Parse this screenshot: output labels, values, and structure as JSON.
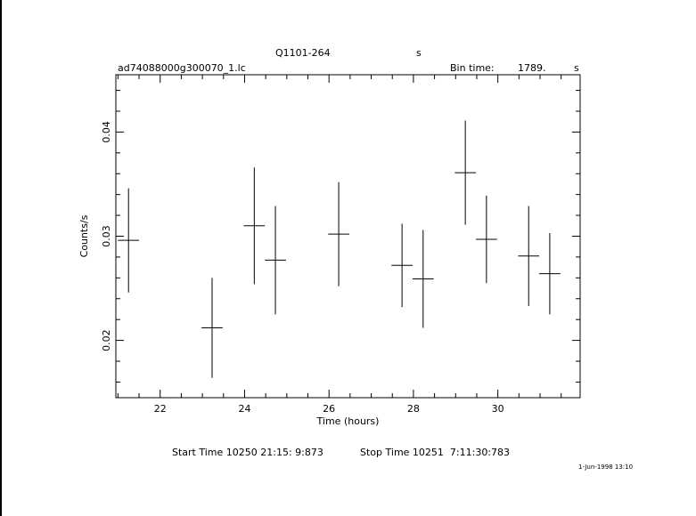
{
  "header": {
    "object": "Q1101-264",
    "object_unit": "s",
    "filename": "ad74088000g300070_1.lc",
    "bin_time_label": "Bin time:",
    "bin_time_value": "1789.",
    "bin_time_unit": "s"
  },
  "footer": {
    "start_time": "Start Time 10250 21:15: 9:873",
    "stop_time": "Stop Time 10251  7:11:30:783",
    "date_stamp": "1-Jun-1998 13:10"
  },
  "chart_data": {
    "type": "scatter",
    "title": "Q1101-264",
    "xlabel": "Time (hours)",
    "ylabel": "Counts/s",
    "xlim": [
      20.95,
      31.95
    ],
    "ylim": [
      0.0145,
      0.0455
    ],
    "x_ticks": [
      22,
      24,
      26,
      28,
      30
    ],
    "y_ticks": [
      0.02,
      0.03,
      0.04
    ],
    "x_tick_labels": [
      "22",
      "24",
      "26",
      "28",
      "30"
    ],
    "y_tick_labels": [
      "0.02",
      "0.03",
      "0.04"
    ],
    "grid": false,
    "series": [
      {
        "points": [
          {
            "x": 21.25,
            "xerr": 0.25,
            "y": 0.0296,
            "yerr": 0.005
          },
          {
            "x": 23.23,
            "xerr": 0.25,
            "y": 0.0212,
            "yerr": 0.0048
          },
          {
            "x": 24.23,
            "xerr": 0.25,
            "y": 0.031,
            "yerr": 0.0056
          },
          {
            "x": 24.73,
            "xerr": 0.25,
            "y": 0.0277,
            "yerr": 0.0052
          },
          {
            "x": 26.23,
            "xerr": 0.25,
            "y": 0.0302,
            "yerr": 0.005
          },
          {
            "x": 27.73,
            "xerr": 0.25,
            "y": 0.0272,
            "yerr": 0.004
          },
          {
            "x": 28.23,
            "xerr": 0.25,
            "y": 0.0259,
            "yerr": 0.0047
          },
          {
            "x": 29.23,
            "xerr": 0.25,
            "y": 0.0361,
            "yerr": 0.005
          },
          {
            "x": 29.73,
            "xerr": 0.25,
            "y": 0.0297,
            "yerr": 0.0042
          },
          {
            "x": 30.73,
            "xerr": 0.25,
            "y": 0.0281,
            "yerr": 0.0048
          },
          {
            "x": 31.23,
            "xerr": 0.25,
            "y": 0.0264,
            "yerr": 0.0039
          }
        ]
      }
    ]
  }
}
